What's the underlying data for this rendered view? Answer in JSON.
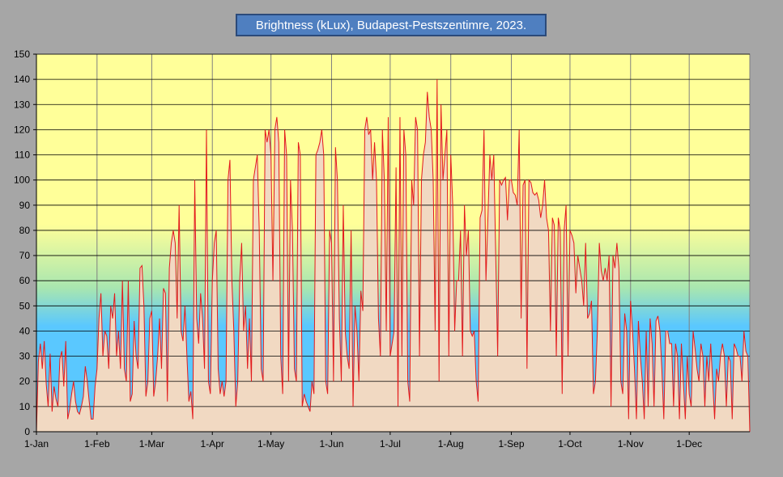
{
  "chart_data": {
    "type": "area",
    "title": "Brightness (kLux), Budapest-Pestszentimre,  2023.",
    "xlabel": "",
    "ylabel": "",
    "ylim": [
      0,
      150
    ],
    "yticks": [
      0,
      10,
      20,
      30,
      40,
      50,
      60,
      70,
      80,
      90,
      100,
      110,
      120,
      130,
      140,
      150
    ],
    "xlim": [
      1,
      366
    ],
    "xticks": [
      {
        "label": "1-Jan",
        "day": 1
      },
      {
        "label": "1-Feb",
        "day": 32
      },
      {
        "label": "1-Mar",
        "day": 60
      },
      {
        "label": "1-Apr",
        "day": 91
      },
      {
        "label": "1-May",
        "day": 121
      },
      {
        "label": "1-Jun",
        "day": 152
      },
      {
        "label": "1-Jul",
        "day": 182
      },
      {
        "label": "1-Aug",
        "day": 213
      },
      {
        "label": "1-Sep",
        "day": 244
      },
      {
        "label": "1-Oct",
        "day": 274
      },
      {
        "label": "1-Nov",
        "day": 305
      },
      {
        "label": "1-Dec",
        "day": 335
      }
    ],
    "grid": true,
    "colors": {
      "line": "#e31a1c",
      "fill": "#f1d9c2",
      "bg_top": "#ffff99",
      "bg_bottom": "#5ac8ff",
      "page": "#a6a6a6",
      "title_box": "#4f7fc0"
    },
    "series": [
      {
        "values": [
          0,
          28,
          35,
          25,
          36,
          19,
          10,
          31,
          8,
          18,
          13,
          10,
          29,
          32,
          18,
          36,
          5,
          9,
          15,
          20,
          12,
          8,
          7,
          10,
          14,
          26,
          20,
          12,
          5,
          5,
          18,
          25,
          45,
          55,
          30,
          40,
          38,
          25,
          50,
          45,
          55,
          30,
          40,
          25,
          60,
          25,
          20,
          60,
          12,
          15,
          44,
          30,
          25,
          65,
          66,
          50,
          14,
          20,
          45,
          48,
          14,
          20,
          30,
          45,
          25,
          57,
          55,
          12,
          65,
          75,
          80,
          75,
          45,
          90,
          40,
          36,
          50,
          30,
          12,
          16,
          5,
          100,
          45,
          35,
          55,
          45,
          25,
          120,
          20,
          15,
          60,
          75,
          80,
          25,
          15,
          20,
          14,
          20,
          100,
          108,
          60,
          40,
          10,
          20,
          60,
          75,
          40,
          50,
          25,
          45,
          20,
          100,
          105,
          110,
          80,
          25,
          20,
          120,
          115,
          120,
          110,
          60,
          120,
          125,
          115,
          30,
          15,
          120,
          110,
          20,
          100,
          80,
          25,
          20,
          115,
          110,
          10,
          15,
          12,
          10,
          8,
          20,
          15,
          110,
          112,
          115,
          120,
          110,
          20,
          15,
          80,
          75,
          20,
          113,
          100,
          45,
          20,
          90,
          40,
          30,
          25,
          80,
          10,
          50,
          40,
          20,
          56,
          48,
          120,
          125,
          118,
          120,
          100,
          115,
          100,
          45,
          30,
          120,
          100,
          40,
          125,
          30,
          35,
          40,
          105,
          10,
          125,
          30,
          120,
          110,
          20,
          12,
          100,
          90,
          125,
          120,
          30,
          100,
          110,
          115,
          135,
          125,
          120,
          100,
          40,
          140,
          20,
          130,
          100,
          110,
          120,
          30,
          110,
          90,
          40,
          60,
          60,
          80,
          30,
          90,
          70,
          80,
          40,
          38,
          40,
          20,
          12,
          85,
          88,
          120,
          60,
          85,
          110,
          100,
          110,
          70,
          30,
          100,
          98,
          100,
          101,
          84,
          100,
          100,
          95,
          94,
          90,
          120,
          45,
          98,
          100,
          25,
          100,
          99,
          95,
          94,
          95,
          92,
          85,
          90,
          100,
          85,
          80,
          40,
          85,
          82,
          30,
          85,
          80,
          15,
          80,
          90,
          30,
          80,
          78,
          75,
          55,
          70,
          65,
          60,
          50,
          75,
          45,
          47,
          52,
          15,
          20,
          40,
          75,
          64,
          60,
          65,
          60,
          70,
          10,
          70,
          65,
          75,
          65,
          20,
          15,
          47,
          40,
          5,
          52,
          40,
          25,
          5,
          44,
          30,
          20,
          5,
          40,
          10,
          45,
          35,
          10,
          44,
          46,
          40,
          25,
          5,
          40,
          40,
          35,
          35,
          10,
          35,
          30,
          5,
          35,
          20,
          5,
          30,
          15,
          10,
          40,
          33,
          25,
          20,
          35,
          30,
          10,
          30,
          20,
          35,
          20,
          5,
          25,
          20,
          30,
          35,
          30,
          10,
          30,
          28,
          5,
          35,
          33,
          30,
          30,
          20,
          40,
          32,
          30,
          0
        ]
      }
    ]
  }
}
